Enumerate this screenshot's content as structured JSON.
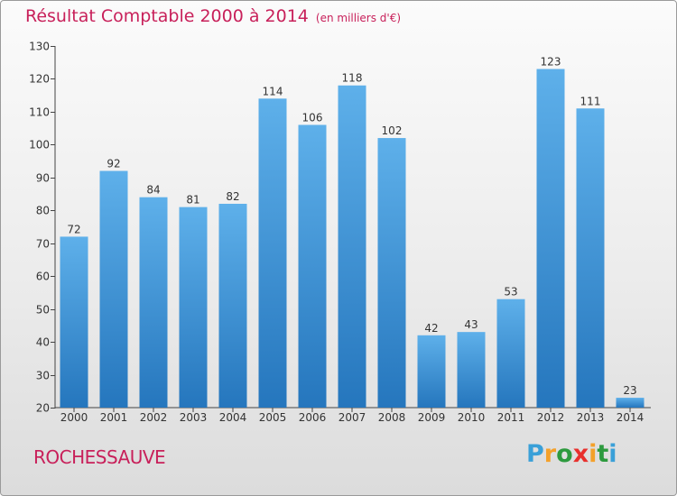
{
  "chart_data": {
    "type": "bar",
    "title": "Résultat Comptable 2000 à 2014",
    "subtitle": "(en milliers d'€)",
    "categories": [
      "2000",
      "2001",
      "2002",
      "2003",
      "2004",
      "2005",
      "2006",
      "2007",
      "2008",
      "2009",
      "2010",
      "2011",
      "2012",
      "2013",
      "2014"
    ],
    "values": [
      72,
      92,
      84,
      81,
      82,
      114,
      106,
      118,
      102,
      42,
      43,
      53,
      123,
      111,
      23
    ],
    "ylim": [
      20,
      130
    ],
    "yticks": [
      20,
      30,
      40,
      50,
      60,
      70,
      80,
      90,
      100,
      110,
      120,
      130
    ],
    "xlabel": "",
    "ylabel": "",
    "grid": false,
    "bar_color": "#2f86cf"
  },
  "commune": "ROCHESSAUVE",
  "logo": {
    "letters": [
      "P",
      "r",
      "o",
      "x",
      "i",
      "t",
      "i"
    ],
    "colors": [
      "#3aa0d8",
      "#f4a12a",
      "#2d9a3e",
      "#e8302d",
      "#f4a12a",
      "#2d9a3e",
      "#3aa0d8"
    ]
  }
}
